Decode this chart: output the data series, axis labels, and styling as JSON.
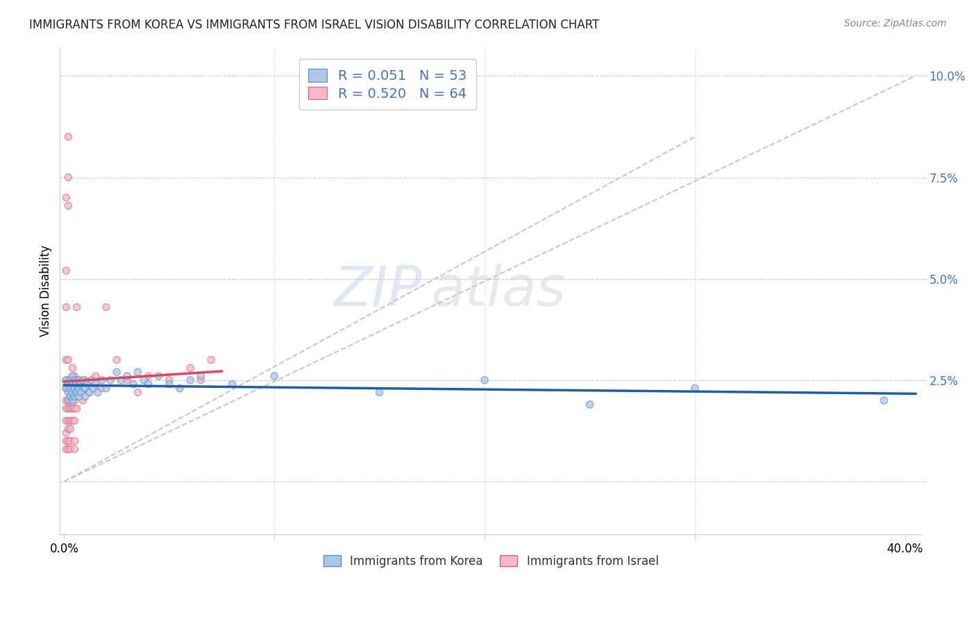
{
  "title": "IMMIGRANTS FROM KOREA VS IMMIGRANTS FROM ISRAEL VISION DISABILITY CORRELATION CHART",
  "source": "Source: ZipAtlas.com",
  "ylabel": "Vision Disability",
  "yticks": [
    0.0,
    0.025,
    0.05,
    0.075,
    0.1
  ],
  "ytick_labels": [
    "",
    "2.5%",
    "5.0%",
    "7.5%",
    "10.0%"
  ],
  "xlim": [
    -0.002,
    0.408
  ],
  "ylim": [
    -0.013,
    0.107
  ],
  "korea_R": 0.051,
  "korea_N": 53,
  "israel_R": 0.52,
  "israel_N": 64,
  "korea_color": "#aec6e8",
  "israel_color": "#f4b8c8",
  "korea_line_color": "#1a5fa8",
  "israel_line_color": "#e8405a",
  "diagonal_color": "#c8c8c8",
  "watermark_zip": "ZIP",
  "watermark_atlas": "atlas",
  "legend_korea": "Immigrants from Korea",
  "legend_israel": "Immigrants from Israel",
  "korea_points": [
    [
      0.001,
      0.025
    ],
    [
      0.001,
      0.023
    ],
    [
      0.002,
      0.022
    ],
    [
      0.002,
      0.024
    ],
    [
      0.002,
      0.02
    ],
    [
      0.003,
      0.023
    ],
    [
      0.003,
      0.025
    ],
    [
      0.003,
      0.021
    ],
    [
      0.004,
      0.024
    ],
    [
      0.004,
      0.022
    ],
    [
      0.004,
      0.026
    ],
    [
      0.004,
      0.02
    ],
    [
      0.005,
      0.023
    ],
    [
      0.005,
      0.025
    ],
    [
      0.005,
      0.021
    ],
    [
      0.006,
      0.024
    ],
    [
      0.006,
      0.022
    ],
    [
      0.007,
      0.025
    ],
    [
      0.007,
      0.023
    ],
    [
      0.007,
      0.021
    ],
    [
      0.008,
      0.024
    ],
    [
      0.008,
      0.022
    ],
    [
      0.009,
      0.025
    ],
    [
      0.01,
      0.023
    ],
    [
      0.01,
      0.021
    ],
    [
      0.011,
      0.024
    ],
    [
      0.012,
      0.022
    ],
    [
      0.013,
      0.025
    ],
    [
      0.014,
      0.023
    ],
    [
      0.015,
      0.024
    ],
    [
      0.016,
      0.022
    ],
    [
      0.018,
      0.025
    ],
    [
      0.02,
      0.023
    ],
    [
      0.022,
      0.025
    ],
    [
      0.025,
      0.027
    ],
    [
      0.027,
      0.025
    ],
    [
      0.03,
      0.026
    ],
    [
      0.033,
      0.024
    ],
    [
      0.035,
      0.027
    ],
    [
      0.038,
      0.025
    ],
    [
      0.04,
      0.024
    ],
    [
      0.045,
      0.026
    ],
    [
      0.05,
      0.024
    ],
    [
      0.055,
      0.023
    ],
    [
      0.06,
      0.025
    ],
    [
      0.065,
      0.026
    ],
    [
      0.08,
      0.024
    ],
    [
      0.1,
      0.026
    ],
    [
      0.15,
      0.022
    ],
    [
      0.2,
      0.025
    ],
    [
      0.25,
      0.019
    ],
    [
      0.3,
      0.023
    ],
    [
      0.39,
      0.02
    ]
  ],
  "israel_points": [
    [
      0.001,
      0.07
    ],
    [
      0.001,
      0.052
    ],
    [
      0.001,
      0.043
    ],
    [
      0.001,
      0.03
    ],
    [
      0.001,
      0.025
    ],
    [
      0.001,
      0.023
    ],
    [
      0.001,
      0.02
    ],
    [
      0.001,
      0.018
    ],
    [
      0.001,
      0.015
    ],
    [
      0.001,
      0.012
    ],
    [
      0.001,
      0.01
    ],
    [
      0.001,
      0.008
    ],
    [
      0.002,
      0.085
    ],
    [
      0.002,
      0.075
    ],
    [
      0.002,
      0.068
    ],
    [
      0.002,
      0.03
    ],
    [
      0.002,
      0.025
    ],
    [
      0.002,
      0.023
    ],
    [
      0.002,
      0.02
    ],
    [
      0.002,
      0.018
    ],
    [
      0.002,
      0.015
    ],
    [
      0.002,
      0.013
    ],
    [
      0.002,
      0.01
    ],
    [
      0.002,
      0.008
    ],
    [
      0.003,
      0.025
    ],
    [
      0.003,
      0.022
    ],
    [
      0.003,
      0.02
    ],
    [
      0.003,
      0.018
    ],
    [
      0.003,
      0.015
    ],
    [
      0.003,
      0.013
    ],
    [
      0.003,
      0.01
    ],
    [
      0.003,
      0.008
    ],
    [
      0.004,
      0.028
    ],
    [
      0.004,
      0.025
    ],
    [
      0.004,
      0.022
    ],
    [
      0.004,
      0.018
    ],
    [
      0.004,
      0.015
    ],
    [
      0.005,
      0.026
    ],
    [
      0.005,
      0.023
    ],
    [
      0.005,
      0.02
    ],
    [
      0.005,
      0.018
    ],
    [
      0.005,
      0.015
    ],
    [
      0.005,
      0.01
    ],
    [
      0.005,
      0.008
    ],
    [
      0.006,
      0.025
    ],
    [
      0.006,
      0.022
    ],
    [
      0.006,
      0.018
    ],
    [
      0.006,
      0.043
    ],
    [
      0.007,
      0.025
    ],
    [
      0.008,
      0.022
    ],
    [
      0.009,
      0.02
    ],
    [
      0.01,
      0.025
    ],
    [
      0.012,
      0.022
    ],
    [
      0.015,
      0.026
    ],
    [
      0.018,
      0.023
    ],
    [
      0.02,
      0.043
    ],
    [
      0.025,
      0.03
    ],
    [
      0.03,
      0.025
    ],
    [
      0.035,
      0.022
    ],
    [
      0.04,
      0.026
    ],
    [
      0.05,
      0.025
    ],
    [
      0.06,
      0.028
    ],
    [
      0.065,
      0.025
    ],
    [
      0.07,
      0.03
    ]
  ]
}
